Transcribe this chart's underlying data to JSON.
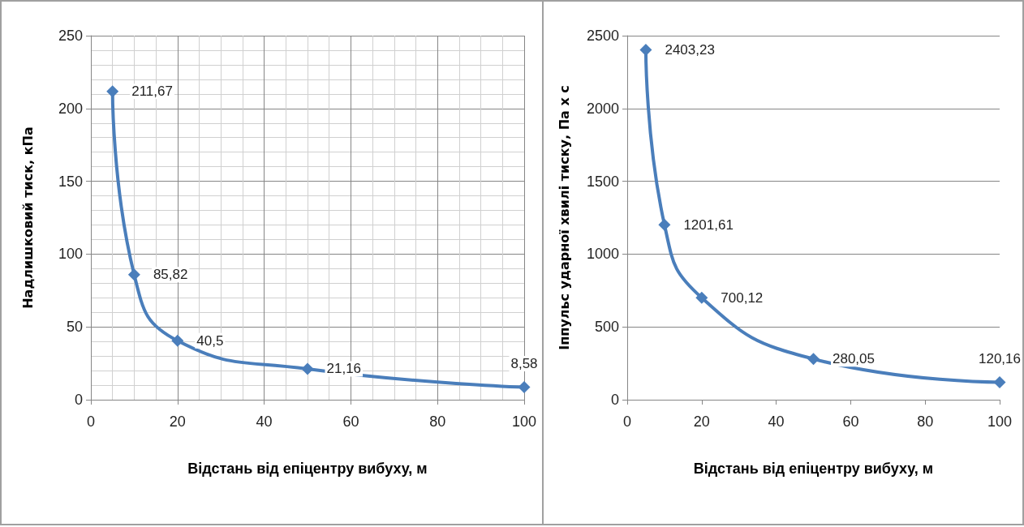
{
  "chart_data": [
    {
      "type": "line",
      "xlabel": "Відстань від епіцентру вибуху, м",
      "ylabel": "Надлишковий тиск, кПа",
      "x": [
        5,
        10,
        20,
        50,
        100
      ],
      "series": [
        {
          "color": "#4a7ebb",
          "values": [
            211.67,
            85.82,
            40.5,
            21.16,
            8.58
          ],
          "value_labels": [
            "211,67",
            "85,82",
            "40,5",
            "21,16",
            "8,58"
          ]
        }
      ],
      "xlim": [
        0,
        100
      ],
      "xticks": [
        0,
        20,
        40,
        60,
        80,
        100
      ],
      "ylim": [
        0,
        250
      ],
      "yticks": [
        0,
        50,
        100,
        150,
        200,
        250
      ],
      "grid": true,
      "marker": "diamond",
      "line_style": "solid"
    },
    {
      "type": "line",
      "xlabel": "Відстань від епіцентру вибуху, м",
      "ylabel": "Іппульс ударної хвилі тиску, Па х с",
      "x": [
        5,
        10,
        20,
        50,
        100
      ],
      "series": [
        {
          "color": "#4a7ebb",
          "values": [
            2403.23,
            1201.61,
            700.12,
            280.05,
            120.16
          ],
          "value_labels": [
            "2403,23",
            "1201,61",
            "700,12",
            "280,05",
            "120,16"
          ]
        }
      ],
      "xlim": [
        0,
        100
      ],
      "xticks": [
        0,
        20,
        40,
        60,
        80,
        100
      ],
      "ylim": [
        0,
        2500
      ],
      "yticks": [
        0,
        500,
        1000,
        1500,
        2000,
        2500
      ],
      "grid": "y",
      "marker": "diamond",
      "line_style": "solid"
    }
  ]
}
